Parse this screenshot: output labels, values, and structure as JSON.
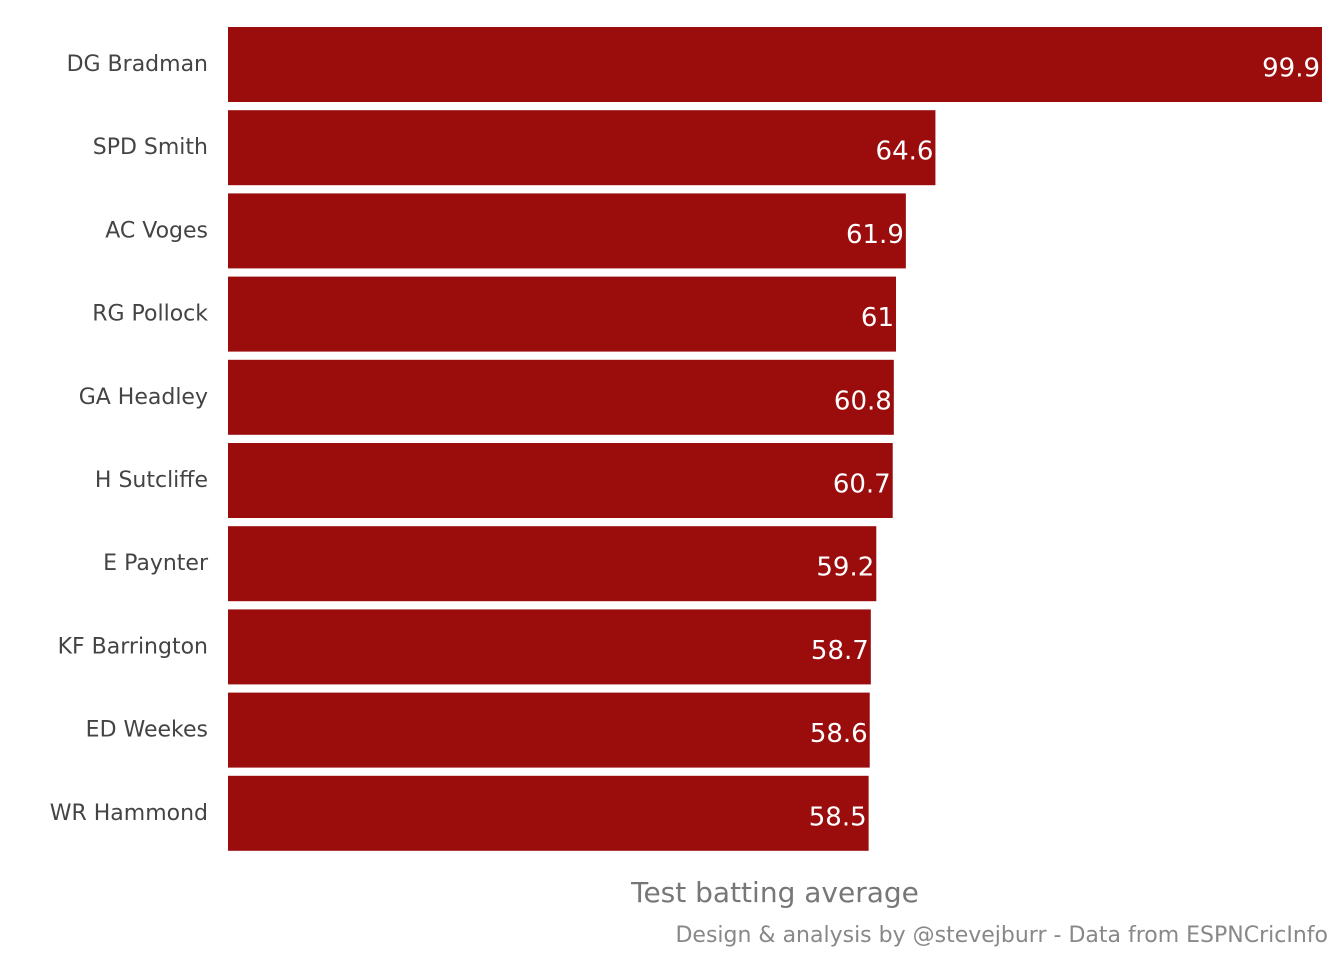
{
  "chart_data": {
    "type": "bar",
    "orientation": "horizontal",
    "categories": [
      "DG Bradman",
      "SPD Smith",
      "AC Voges",
      "RG Pollock",
      "GA Headley",
      "H Sutcliffe",
      "E Paynter",
      "KF Barrington",
      "ED Weekes",
      "WR Hammond"
    ],
    "values": [
      99.9,
      64.6,
      61.9,
      61,
      60.8,
      60.7,
      59.2,
      58.7,
      58.6,
      58.5
    ],
    "value_labels": [
      "99.9",
      "64.6",
      "61.9",
      "61",
      "60.8",
      "60.7",
      "59.2",
      "58.7",
      "58.6",
      "58.5"
    ],
    "xlabel": "Test batting average",
    "ylabel": "",
    "xlim": [
      0,
      99.9
    ],
    "grid": false,
    "bar_color": "#9b0d0d",
    "caption": "Design & analysis by @stevejburr - Data from ESPNCricInfo"
  }
}
